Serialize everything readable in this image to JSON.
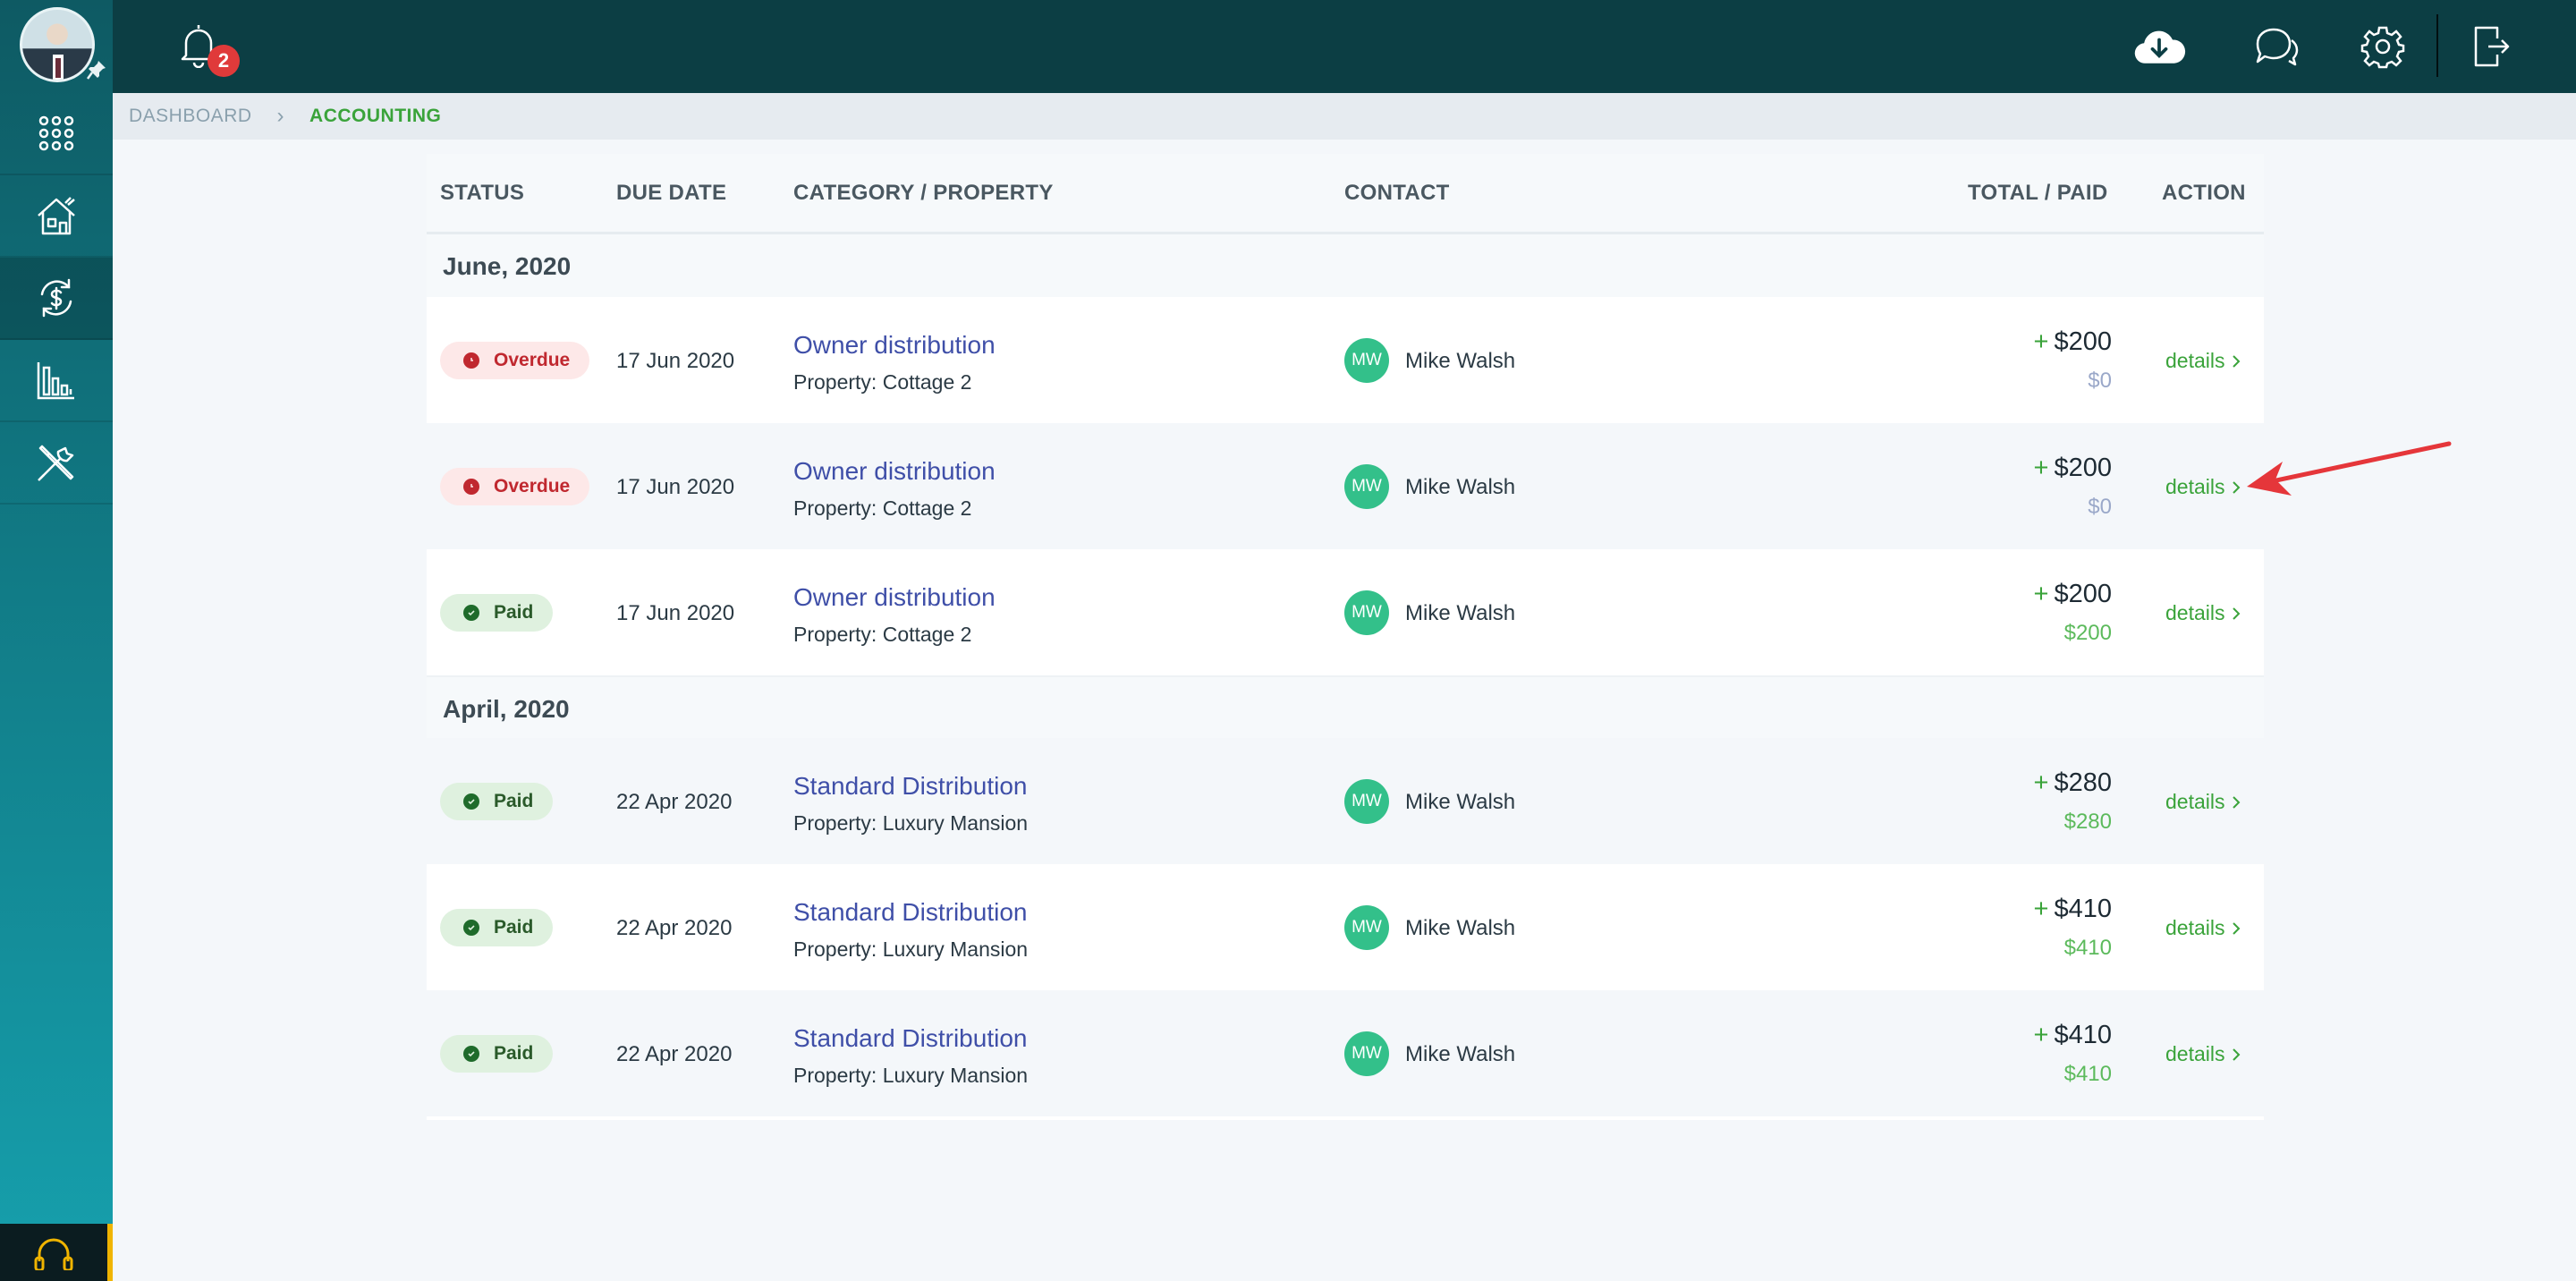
{
  "sidebar": {
    "items": [
      {
        "name": "grid-icon"
      },
      {
        "name": "house-icon"
      },
      {
        "name": "accounting-icon",
        "active": true
      },
      {
        "name": "reports-icon"
      },
      {
        "name": "tools-icon"
      }
    ],
    "support_icon": "headset-icon"
  },
  "topbar": {
    "notification_count": "2",
    "icons": [
      "cloud-download-icon",
      "chat-icon",
      "gear-icon",
      "logout-icon"
    ]
  },
  "breadcrumb": {
    "home": "DASHBOARD",
    "current": "ACCOUNTING"
  },
  "table": {
    "headers": {
      "status": "STATUS",
      "due_date": "DUE DATE",
      "category": "CATEGORY / PROPERTY",
      "contact": "CONTACT",
      "total": "TOTAL / PAID",
      "action": "ACTION"
    },
    "groups": [
      {
        "label": "June, 2020",
        "rows": [
          {
            "status": "Overdue",
            "date": "17 Jun 2020",
            "title": "Owner distribution",
            "property": "Property: Cottage 2",
            "initials": "MW",
            "contact": "Mike Walsh",
            "plus": "+",
            "total": "$200",
            "paid": "$0",
            "action": "details"
          },
          {
            "status": "Overdue",
            "date": "17 Jun 2020",
            "title": "Owner distribution",
            "property": "Property: Cottage 2",
            "initials": "MW",
            "contact": "Mike Walsh",
            "plus": "+",
            "total": "$200",
            "paid": "$0",
            "action": "details"
          },
          {
            "status": "Paid",
            "date": "17 Jun 2020",
            "title": "Owner distribution",
            "property": "Property: Cottage 2",
            "initials": "MW",
            "contact": "Mike Walsh",
            "plus": "+",
            "total": "$200",
            "paid": "$200",
            "action": "details"
          }
        ]
      },
      {
        "label": "April, 2020",
        "rows": [
          {
            "status": "Paid",
            "date": "22 Apr 2020",
            "title": "Standard Distribution",
            "property": "Property: Luxury Mansion",
            "initials": "MW",
            "contact": "Mike Walsh",
            "plus": "+",
            "total": "$280",
            "paid": "$280",
            "action": "details"
          },
          {
            "status": "Paid",
            "date": "22 Apr 2020",
            "title": "Standard Distribution",
            "property": "Property: Luxury Mansion",
            "initials": "MW",
            "contact": "Mike Walsh",
            "plus": "+",
            "total": "$410",
            "paid": "$410",
            "action": "details"
          },
          {
            "status": "Paid",
            "date": "22 Apr 2020",
            "title": "Standard Distribution",
            "property": "Property: Luxury Mansion",
            "initials": "MW",
            "contact": "Mike Walsh",
            "plus": "+",
            "total": "$410",
            "paid": "$410",
            "action": "details"
          }
        ]
      }
    ]
  },
  "colors": {
    "topbar": "#0c3e44",
    "accent_green": "#3aa33a",
    "link_blue": "#3f4fa8",
    "overdue_red": "#c0282f",
    "annotation_arrow": "#e5363a"
  }
}
